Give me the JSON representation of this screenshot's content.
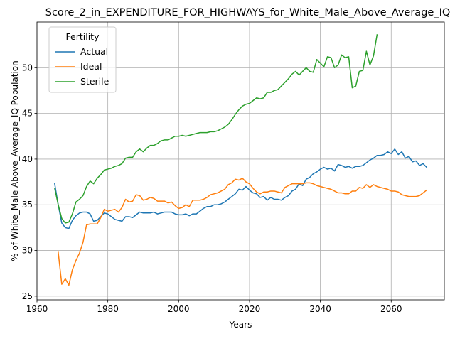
{
  "chart_data": {
    "type": "line",
    "title": "Score_2_in_EXPENDITURE_FOR_HIGHWAYS_for_White_Male_Above_Average_IQ",
    "xlabel": "Years",
    "ylabel": "% of White_Male Above_Average_IQ Population",
    "xlim": [
      1960,
      2075
    ],
    "ylim": [
      24.6,
      55
    ],
    "x_ticks": [
      1960,
      1980,
      2000,
      2020,
      2040,
      2060
    ],
    "y_ticks": [
      25,
      30,
      35,
      40,
      45,
      50
    ],
    "x_tick_labels": [
      "1960",
      "1980",
      "2000",
      "2020",
      "2040",
      "2060"
    ],
    "y_tick_labels": [
      "25",
      "30",
      "35",
      "40",
      "45",
      "50"
    ],
    "grid": true,
    "legend": {
      "title": "Fertility",
      "placement": "top-left"
    },
    "series": [
      {
        "name": "Actual",
        "color": "#1f77b4",
        "points": [
          [
            1965,
            37.3
          ],
          [
            1966,
            35.0
          ],
          [
            1967,
            33.0
          ],
          [
            1968,
            32.5
          ],
          [
            1969,
            32.4
          ],
          [
            1970,
            33.3
          ],
          [
            1971,
            33.8
          ],
          [
            1972,
            34.1
          ],
          [
            1973,
            34.2
          ],
          [
            1974,
            34.2
          ],
          [
            1975,
            34.0
          ],
          [
            1976,
            33.2
          ],
          [
            1977,
            33.3
          ],
          [
            1978,
            33.7
          ],
          [
            1979,
            34.1
          ],
          [
            1980,
            34.0
          ],
          [
            1981,
            33.7
          ],
          [
            1982,
            33.4
          ],
          [
            1983,
            33.3
          ],
          [
            1984,
            33.2
          ],
          [
            1985,
            33.7
          ],
          [
            1986,
            33.7
          ],
          [
            1987,
            33.6
          ],
          [
            1988,
            33.9
          ],
          [
            1989,
            34.2
          ],
          [
            1990,
            34.1
          ],
          [
            1991,
            34.1
          ],
          [
            1992,
            34.1
          ],
          [
            1993,
            34.2
          ],
          [
            1994,
            34.0
          ],
          [
            1995,
            34.1
          ],
          [
            1996,
            34.2
          ],
          [
            1997,
            34.2
          ],
          [
            1998,
            34.2
          ],
          [
            1999,
            34.0
          ],
          [
            2000,
            33.9
          ],
          [
            2001,
            33.9
          ],
          [
            2002,
            34.0
          ],
          [
            2003,
            33.8
          ],
          [
            2004,
            34.0
          ],
          [
            2005,
            34.0
          ],
          [
            2006,
            34.3
          ],
          [
            2007,
            34.6
          ],
          [
            2008,
            34.8
          ],
          [
            2009,
            34.8
          ],
          [
            2010,
            35.0
          ],
          [
            2011,
            35.0
          ],
          [
            2012,
            35.1
          ],
          [
            2013,
            35.3
          ],
          [
            2014,
            35.6
          ],
          [
            2015,
            35.9
          ],
          [
            2016,
            36.2
          ],
          [
            2017,
            36.7
          ],
          [
            2018,
            36.6
          ],
          [
            2019,
            37.0
          ],
          [
            2020,
            36.6
          ],
          [
            2021,
            36.3
          ],
          [
            2022,
            36.2
          ],
          [
            2023,
            35.8
          ],
          [
            2024,
            35.9
          ],
          [
            2025,
            35.5
          ],
          [
            2026,
            35.8
          ],
          [
            2027,
            35.6
          ],
          [
            2028,
            35.6
          ],
          [
            2029,
            35.5
          ],
          [
            2030,
            35.8
          ],
          [
            2031,
            36.0
          ],
          [
            2032,
            36.5
          ],
          [
            2033,
            36.7
          ],
          [
            2034,
            37.3
          ],
          [
            2035,
            37.1
          ],
          [
            2036,
            37.8
          ],
          [
            2037,
            38.0
          ],
          [
            2038,
            38.4
          ],
          [
            2039,
            38.6
          ],
          [
            2040,
            38.9
          ],
          [
            2041,
            39.1
          ],
          [
            2042,
            38.9
          ],
          [
            2043,
            39.0
          ],
          [
            2044,
            38.7
          ],
          [
            2045,
            39.4
          ],
          [
            2046,
            39.3
          ],
          [
            2047,
            39.1
          ],
          [
            2048,
            39.2
          ],
          [
            2049,
            39.0
          ],
          [
            2050,
            39.2
          ],
          [
            2051,
            39.2
          ],
          [
            2052,
            39.3
          ],
          [
            2053,
            39.6
          ],
          [
            2054,
            39.9
          ],
          [
            2055,
            40.1
          ],
          [
            2056,
            40.4
          ],
          [
            2057,
            40.4
          ],
          [
            2058,
            40.5
          ],
          [
            2059,
            40.8
          ],
          [
            2060,
            40.6
          ],
          [
            2061,
            41.1
          ],
          [
            2062,
            40.5
          ],
          [
            2063,
            40.8
          ],
          [
            2064,
            40.1
          ],
          [
            2065,
            40.3
          ],
          [
            2066,
            39.7
          ],
          [
            2067,
            39.8
          ],
          [
            2068,
            39.3
          ],
          [
            2069,
            39.5
          ],
          [
            2070,
            39.1
          ]
        ]
      },
      {
        "name": "Ideal",
        "color": "#ff7f0e",
        "points": [
          [
            1966,
            29.8
          ],
          [
            1967,
            26.3
          ],
          [
            1968,
            26.9
          ],
          [
            1969,
            26.2
          ],
          [
            1970,
            27.9
          ],
          [
            1971,
            28.9
          ],
          [
            1972,
            29.7
          ],
          [
            1973,
            30.9
          ],
          [
            1974,
            32.8
          ],
          [
            1975,
            32.9
          ],
          [
            1976,
            32.9
          ],
          [
            1977,
            32.9
          ],
          [
            1978,
            33.6
          ],
          [
            1979,
            34.5
          ],
          [
            1980,
            34.3
          ],
          [
            1981,
            34.4
          ],
          [
            1982,
            34.5
          ],
          [
            1983,
            34.2
          ],
          [
            1984,
            34.7
          ],
          [
            1985,
            35.6
          ],
          [
            1986,
            35.3
          ],
          [
            1987,
            35.4
          ],
          [
            1988,
            36.1
          ],
          [
            1989,
            36.0
          ],
          [
            1990,
            35.5
          ],
          [
            1991,
            35.6
          ],
          [
            1992,
            35.8
          ],
          [
            1993,
            35.7
          ],
          [
            1994,
            35.4
          ],
          [
            1995,
            35.4
          ],
          [
            1996,
            35.4
          ],
          [
            1997,
            35.2
          ],
          [
            1998,
            35.3
          ],
          [
            1999,
            34.9
          ],
          [
            2000,
            34.6
          ],
          [
            2001,
            34.7
          ],
          [
            2002,
            35.0
          ],
          [
            2003,
            34.8
          ],
          [
            2004,
            35.5
          ],
          [
            2005,
            35.5
          ],
          [
            2006,
            35.5
          ],
          [
            2007,
            35.6
          ],
          [
            2008,
            35.8
          ],
          [
            2009,
            36.1
          ],
          [
            2010,
            36.2
          ],
          [
            2011,
            36.3
          ],
          [
            2012,
            36.5
          ],
          [
            2013,
            36.7
          ],
          [
            2014,
            37.2
          ],
          [
            2015,
            37.4
          ],
          [
            2016,
            37.8
          ],
          [
            2017,
            37.7
          ],
          [
            2018,
            37.9
          ],
          [
            2019,
            37.5
          ],
          [
            2020,
            37.3
          ],
          [
            2021,
            36.8
          ],
          [
            2022,
            36.4
          ],
          [
            2023,
            36.2
          ],
          [
            2024,
            36.4
          ],
          [
            2025,
            36.4
          ],
          [
            2026,
            36.5
          ],
          [
            2027,
            36.5
          ],
          [
            2028,
            36.4
          ],
          [
            2029,
            36.3
          ],
          [
            2030,
            36.9
          ],
          [
            2031,
            37.1
          ],
          [
            2032,
            37.3
          ],
          [
            2033,
            37.3
          ],
          [
            2034,
            37.3
          ],
          [
            2035,
            37.3
          ],
          [
            2036,
            37.4
          ],
          [
            2037,
            37.4
          ],
          [
            2038,
            37.3
          ],
          [
            2039,
            37.1
          ],
          [
            2040,
            37.0
          ],
          [
            2041,
            36.9
          ],
          [
            2042,
            36.8
          ],
          [
            2043,
            36.7
          ],
          [
            2044,
            36.5
          ],
          [
            2045,
            36.3
          ],
          [
            2046,
            36.3
          ],
          [
            2047,
            36.2
          ],
          [
            2048,
            36.2
          ],
          [
            2049,
            36.5
          ],
          [
            2050,
            36.5
          ],
          [
            2051,
            36.9
          ],
          [
            2052,
            36.8
          ],
          [
            2053,
            37.2
          ],
          [
            2054,
            36.9
          ],
          [
            2055,
            37.2
          ],
          [
            2056,
            37.0
          ],
          [
            2057,
            36.9
          ],
          [
            2058,
            36.8
          ],
          [
            2059,
            36.7
          ],
          [
            2060,
            36.5
          ],
          [
            2061,
            36.5
          ],
          [
            2062,
            36.4
          ],
          [
            2063,
            36.1
          ],
          [
            2064,
            36.0
          ],
          [
            2065,
            35.9
          ],
          [
            2066,
            35.9
          ],
          [
            2067,
            35.9
          ],
          [
            2068,
            36.0
          ],
          [
            2069,
            36.3
          ],
          [
            2070,
            36.6
          ]
        ]
      },
      {
        "name": "Sterile",
        "color": "#2ca02c",
        "points": [
          [
            1965,
            36.8
          ],
          [
            1966,
            35.0
          ],
          [
            1967,
            33.5
          ],
          [
            1968,
            33.0
          ],
          [
            1969,
            33.1
          ],
          [
            1970,
            34.0
          ],
          [
            1971,
            35.3
          ],
          [
            1972,
            35.6
          ],
          [
            1973,
            36.0
          ],
          [
            1974,
            37.0
          ],
          [
            1975,
            37.6
          ],
          [
            1976,
            37.3
          ],
          [
            1977,
            37.9
          ],
          [
            1978,
            38.3
          ],
          [
            1979,
            38.8
          ],
          [
            1980,
            38.9
          ],
          [
            1981,
            39.0
          ],
          [
            1982,
            39.2
          ],
          [
            1983,
            39.3
          ],
          [
            1984,
            39.5
          ],
          [
            1985,
            40.1
          ],
          [
            1986,
            40.2
          ],
          [
            1987,
            40.2
          ],
          [
            1988,
            40.8
          ],
          [
            1989,
            41.1
          ],
          [
            1990,
            40.8
          ],
          [
            1991,
            41.2
          ],
          [
            1992,
            41.5
          ],
          [
            1993,
            41.5
          ],
          [
            1994,
            41.7
          ],
          [
            1995,
            42.0
          ],
          [
            1996,
            42.1
          ],
          [
            1997,
            42.1
          ],
          [
            1998,
            42.3
          ],
          [
            1999,
            42.5
          ],
          [
            2000,
            42.5
          ],
          [
            2001,
            42.6
          ],
          [
            2002,
            42.5
          ],
          [
            2003,
            42.6
          ],
          [
            2004,
            42.7
          ],
          [
            2005,
            42.8
          ],
          [
            2006,
            42.9
          ],
          [
            2007,
            42.9
          ],
          [
            2008,
            42.9
          ],
          [
            2009,
            43.0
          ],
          [
            2010,
            43.0
          ],
          [
            2011,
            43.1
          ],
          [
            2012,
            43.3
          ],
          [
            2013,
            43.5
          ],
          [
            2014,
            43.8
          ],
          [
            2015,
            44.3
          ],
          [
            2016,
            44.9
          ],
          [
            2017,
            45.4
          ],
          [
            2018,
            45.8
          ],
          [
            2019,
            46.0
          ],
          [
            2020,
            46.1
          ],
          [
            2021,
            46.4
          ],
          [
            2022,
            46.7
          ],
          [
            2023,
            46.6
          ],
          [
            2024,
            46.7
          ],
          [
            2025,
            47.3
          ],
          [
            2026,
            47.3
          ],
          [
            2027,
            47.5
          ],
          [
            2028,
            47.6
          ],
          [
            2029,
            48.0
          ],
          [
            2030,
            48.4
          ],
          [
            2031,
            48.8
          ],
          [
            2032,
            49.3
          ],
          [
            2033,
            49.6
          ],
          [
            2034,
            49.2
          ],
          [
            2035,
            49.6
          ],
          [
            2036,
            50.0
          ],
          [
            2037,
            49.6
          ],
          [
            2038,
            49.5
          ],
          [
            2039,
            50.9
          ],
          [
            2040,
            50.5
          ],
          [
            2041,
            50.1
          ],
          [
            2042,
            51.2
          ],
          [
            2043,
            51.1
          ],
          [
            2044,
            50.0
          ],
          [
            2045,
            50.3
          ],
          [
            2046,
            51.4
          ],
          [
            2047,
            51.1
          ],
          [
            2048,
            51.2
          ],
          [
            2049,
            47.8
          ],
          [
            2050,
            48.0
          ],
          [
            2051,
            49.6
          ],
          [
            2052,
            49.7
          ],
          [
            2053,
            51.8
          ],
          [
            2054,
            50.3
          ],
          [
            2055,
            51.3
          ],
          [
            2056,
            53.6
          ]
        ]
      }
    ]
  }
}
